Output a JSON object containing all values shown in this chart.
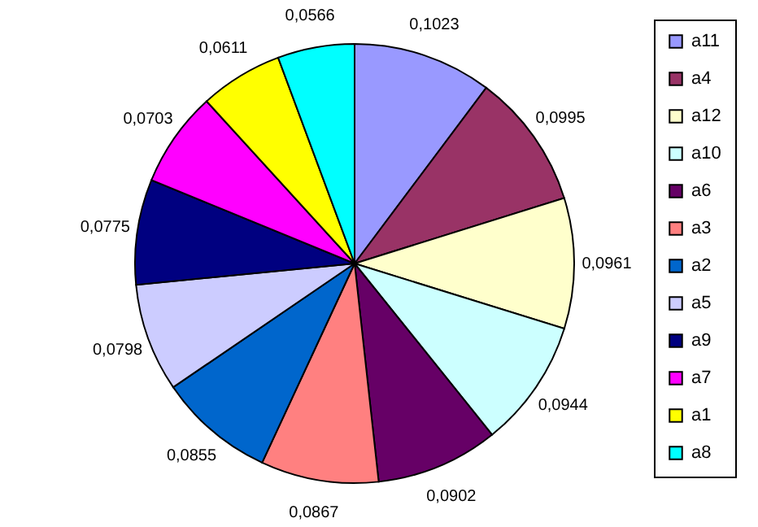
{
  "chart_data": {
    "type": "pie",
    "categories": [
      "a11",
      "a4",
      "a12",
      "a10",
      "a6",
      "a3",
      "a2",
      "a5",
      "a9",
      "a7",
      "a1",
      "a8"
    ],
    "values": [
      0.1023,
      0.0995,
      0.0961,
      0.0944,
      0.0902,
      0.0867,
      0.0855,
      0.0798,
      0.0775,
      0.0703,
      0.0611,
      0.0566
    ],
    "value_labels": [
      "0,1023",
      "0,0995",
      "0,0961",
      "0,0944",
      "0,0902",
      "0,0867",
      "0,0855",
      "0,0798",
      "0,0775",
      "0,0703",
      "0,0611",
      "0,0566"
    ],
    "colors": [
      "#9999ff",
      "#993366",
      "#ffffcc",
      "#ccffff",
      "#660066",
      "#ff8080",
      "#0066cc",
      "#ccccff",
      "#000080",
      "#ff00ff",
      "#ffff00",
      "#00ffff"
    ],
    "legend": "right"
  }
}
